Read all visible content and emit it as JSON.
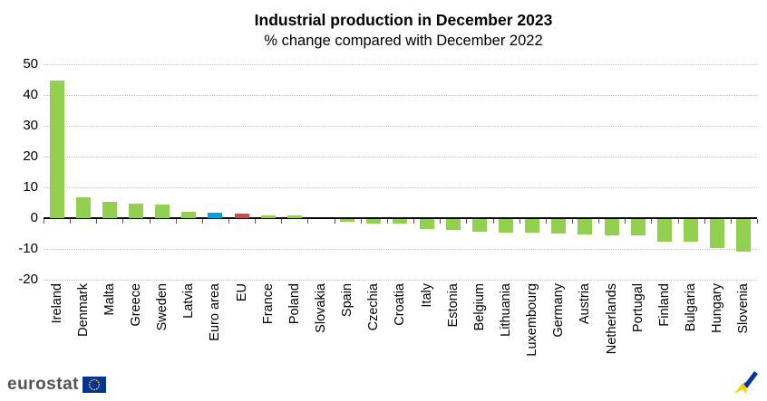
{
  "title": "Industrial production in December 2023",
  "subtitle": "% change compared with December 2022",
  "footer": {
    "logo_text": "eurostat",
    "eu_flag_color": "#003399",
    "eu_star_color": "#ffcc00"
  },
  "icons": {
    "trend_icon_yellow": "#ffcc00",
    "trend_icon_blue": "#0033a0"
  },
  "chart_data": {
    "type": "bar",
    "title": "Industrial production in December 2023",
    "subtitle": "% change compared with December 2022",
    "xlabel": "",
    "ylabel": "% change",
    "ylim": [
      -20,
      50
    ],
    "yticks": [
      50,
      40,
      30,
      20,
      10,
      0,
      -10,
      -20
    ],
    "grid": "horizontal-dotted",
    "legend_position": "none",
    "categories": [
      "Ireland",
      "Denmark",
      "Malta",
      "Greece",
      "Sweden",
      "Latvia",
      "Euro area",
      "EU",
      "France",
      "Poland",
      "Slovakia",
      "Spain",
      "Czechia",
      "Croatia",
      "Italy",
      "Estonia",
      "Belgium",
      "Lithuania",
      "Luxembourg",
      "Germany",
      "Austria",
      "Netherlands",
      "Portugal",
      "Finland",
      "Bulgaria",
      "Hungary",
      "Slovenia"
    ],
    "values": [
      44.7,
      6.8,
      5.2,
      4.7,
      4.4,
      2.1,
      1.7,
      1.6,
      1.0,
      0.8,
      0.0,
      -0.4,
      -0.8,
      -0.9,
      -2.6,
      -2.9,
      -3.6,
      -3.8,
      -3.9,
      -4.1,
      -4.3,
      -4.6,
      -4.8,
      -6.8,
      -6.9,
      -8.7,
      -10.0
    ],
    "colors": {
      "default": "#92d050",
      "Euro area": "#00a2e1",
      "EU": "#c0504d"
    },
    "axis_color": "#000000",
    "grid_color": "#c4c4c4"
  }
}
